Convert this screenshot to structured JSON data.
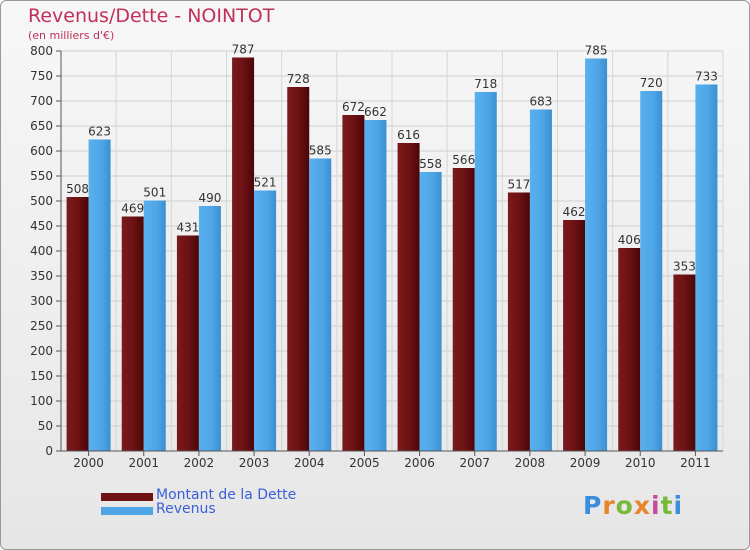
{
  "title": "Revenus/Dette - NOINTOT",
  "subtitle": "(en milliers d'€)",
  "colors": {
    "debt": "#6e1214",
    "revenue": "#4da5e6",
    "title": "#c0305a",
    "legend_text": "#3a5fd8"
  },
  "legend": [
    {
      "label": "Montant de la Dette",
      "color": "#6e1214"
    },
    {
      "label": "Revenus",
      "color": "#4da5e6"
    }
  ],
  "logo": "Proxiti",
  "chart_data": {
    "type": "bar",
    "title": "Revenus/Dette - NOINTOT",
    "subtitle": "(en milliers d'€)",
    "categories": [
      "2000",
      "2001",
      "2002",
      "2003",
      "2004",
      "2005",
      "2006",
      "2007",
      "2008",
      "2009",
      "2010",
      "2011"
    ],
    "series": [
      {
        "name": "Montant de la Dette",
        "values": [
          508,
          469,
          431,
          787,
          728,
          672,
          616,
          566,
          517,
          462,
          406,
          353
        ]
      },
      {
        "name": "Revenus",
        "values": [
          623,
          501,
          490,
          521,
          585,
          662,
          558,
          718,
          683,
          785,
          720,
          733
        ]
      }
    ],
    "ylim": [
      0,
      800
    ],
    "yticks": [
      0,
      50,
      100,
      150,
      200,
      250,
      300,
      350,
      400,
      450,
      500,
      550,
      600,
      650,
      700,
      750,
      800
    ],
    "grid": true,
    "legend_position": "bottom-left"
  }
}
